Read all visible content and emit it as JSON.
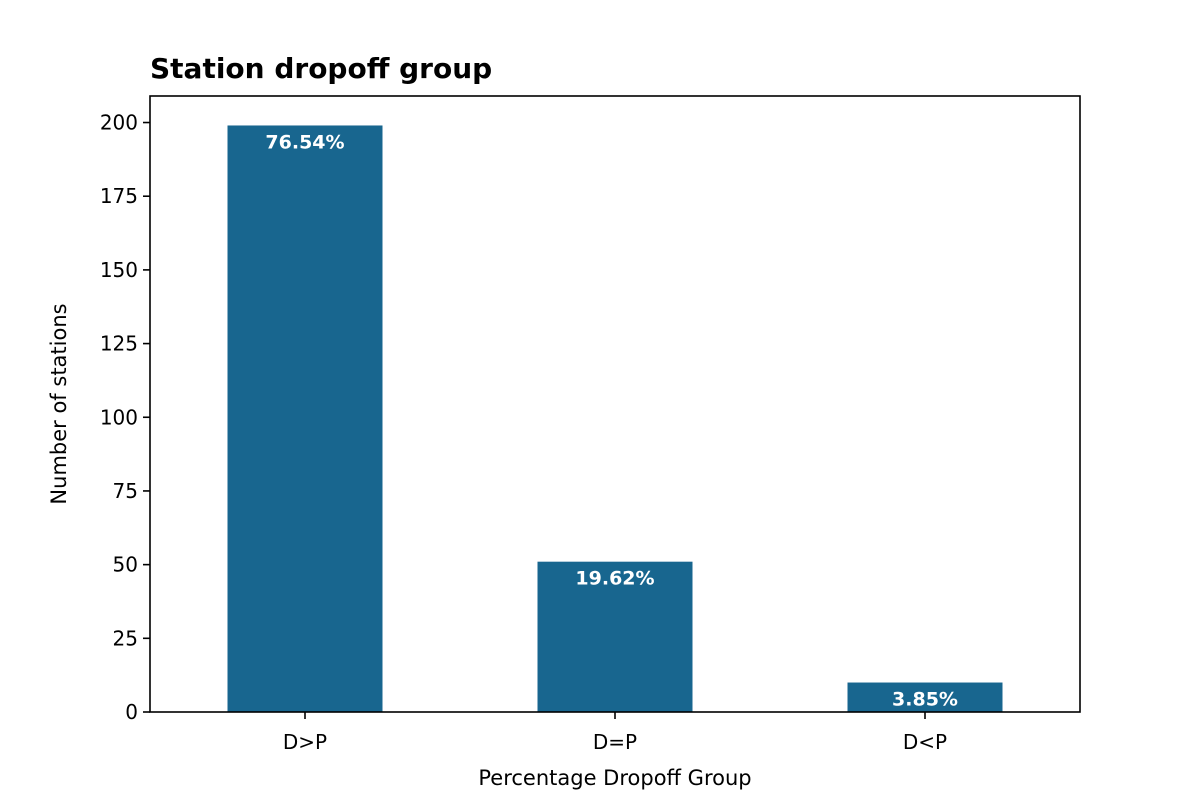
{
  "chart_data": {
    "type": "bar",
    "title": "Station dropoff group",
    "xlabel": "Percentage Dropoff Group",
    "ylabel": "Number of stations",
    "categories": [
      "D>P",
      "D=P",
      "D<P"
    ],
    "values": [
      199,
      51,
      10
    ],
    "data_labels": [
      "76.54%",
      "19.62%",
      "3.85%"
    ],
    "ylim": [
      0,
      209
    ],
    "yticks": [
      0,
      25,
      50,
      75,
      100,
      125,
      150,
      175,
      200
    ],
    "bar_color": "#18668f",
    "grid": false
  }
}
